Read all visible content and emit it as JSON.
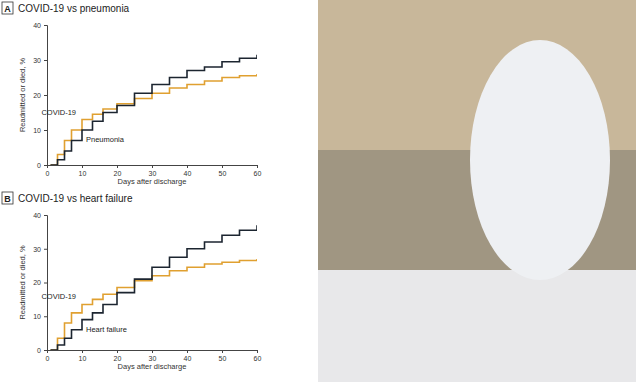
{
  "chart_data": [
    {
      "type": "line",
      "line_style": "step",
      "title": "COVID-19 vs pneumonia",
      "annotations": [
        "A"
      ],
      "x_label": "Days after discharge",
      "y_label": "Readmitted or died, %",
      "x": [
        1,
        3,
        5,
        7,
        10,
        13,
        16,
        20,
        25,
        30,
        35,
        40,
        45,
        50,
        55,
        60
      ],
      "series": [
        {
          "name": "COVID-19",
          "color": "#e0a030",
          "values": [
            0,
            3,
            7,
            10,
            13,
            14.5,
            16,
            17.5,
            19,
            20.5,
            22,
            23,
            24,
            25,
            25.5,
            26
          ]
        },
        {
          "name": "Pneumonia",
          "color": "#1c2530",
          "values": [
            0,
            1.5,
            4,
            7,
            10,
            12.5,
            15,
            17,
            20.5,
            23,
            25,
            27,
            28,
            29.5,
            30.5,
            31.5
          ]
        }
      ],
      "xlim": [
        0,
        60
      ],
      "xticks": [
        0,
        10,
        20,
        30,
        40,
        50,
        60
      ],
      "ylim": [
        0,
        40
      ],
      "yticks": [
        0,
        10,
        20,
        30,
        40
      ],
      "grid": false
    },
    {
      "type": "line",
      "line_style": "step",
      "title": "COVID-19 vs heart failure",
      "annotations": [
        "B"
      ],
      "x_label": "Days after discharge",
      "y_label": "Readmitted or died, %",
      "x": [
        1,
        3,
        5,
        7,
        10,
        13,
        16,
        20,
        25,
        30,
        35,
        40,
        45,
        50,
        55,
        60
      ],
      "series": [
        {
          "name": "COVID-19",
          "color": "#e0a030",
          "values": [
            0,
            3.5,
            8,
            11,
            13.5,
            15,
            16.5,
            18.5,
            20.5,
            22,
            23.5,
            24.5,
            25.5,
            26,
            26.5,
            27
          ]
        },
        {
          "name": "Heart failure",
          "color": "#1c2530",
          "values": [
            0,
            1.5,
            3.5,
            6,
            9,
            11,
            13.5,
            17,
            21,
            24.5,
            27.5,
            30,
            32,
            34,
            35.5,
            37
          ]
        }
      ],
      "xlim": [
        0,
        60
      ],
      "xticks": [
        0,
        10,
        20,
        30,
        40,
        50,
        60
      ],
      "ylim": [
        0,
        40
      ],
      "yticks": [
        0,
        10,
        20,
        30,
        40
      ],
      "grid": false
    }
  ]
}
